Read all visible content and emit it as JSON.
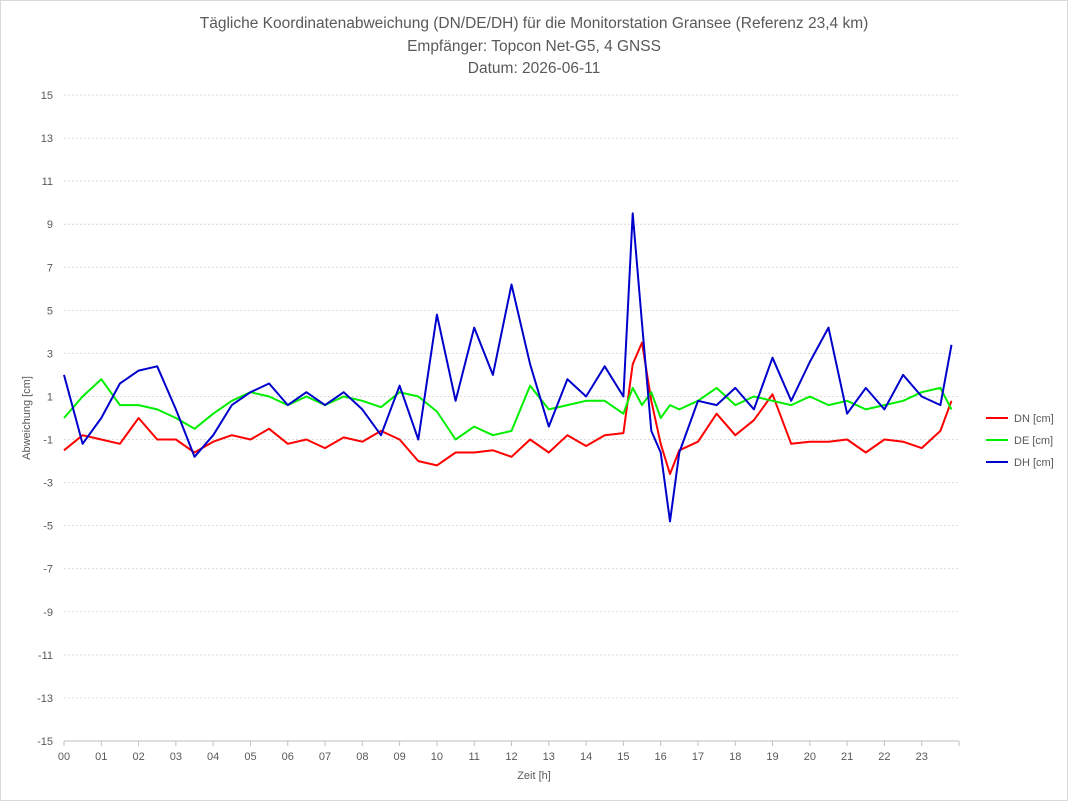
{
  "chart_data": {
    "type": "line",
    "title_lines": [
      "Tägliche Koordinatenabweichung (DN/DE/DH) für die Monitorstation Gransee (Referenz 23,4 km)",
      "Empfänger: Topcon Net-G5, 4 GNSS",
      "Datum: 2026-06-11"
    ],
    "xlabel": "Zeit [h]",
    "ylabel": "Abweichung [cm]",
    "x_ticks": [
      "00",
      "01",
      "02",
      "03",
      "04",
      "05",
      "06",
      "07",
      "08",
      "09",
      "10",
      "11",
      "12",
      "13",
      "14",
      "15",
      "16",
      "17",
      "18",
      "19",
      "20",
      "21",
      "22",
      "23"
    ],
    "xlim": [
      0,
      24
    ],
    "ylim": [
      -15,
      15
    ],
    "y_ticks": [
      "15",
      "13",
      "11",
      "9",
      "7",
      "5",
      "3",
      "1",
      "-1",
      "-3",
      "-5",
      "-7",
      "-9",
      "-11",
      "-13",
      "-15"
    ],
    "grid": "horizontal dotted",
    "legend_position": "right",
    "x": [
      0.0,
      0.5,
      1.0,
      1.5,
      2.0,
      2.5,
      3.0,
      3.5,
      4.0,
      4.5,
      5.0,
      5.5,
      6.0,
      6.5,
      7.0,
      7.5,
      8.0,
      8.5,
      9.0,
      9.5,
      10.0,
      10.5,
      11.0,
      11.5,
      12.0,
      12.5,
      13.0,
      13.5,
      14.0,
      14.5,
      15.0,
      15.25,
      15.5,
      15.75,
      16.0,
      16.25,
      16.5,
      17.0,
      17.5,
      18.0,
      18.5,
      19.0,
      19.5,
      20.0,
      20.5,
      21.0,
      21.5,
      22.0,
      22.5,
      23.0,
      23.5,
      23.8
    ],
    "series": [
      {
        "name": "DN [cm]",
        "color": "#ff0000",
        "values": [
          -1.5,
          -0.8,
          -1.0,
          -1.2,
          0.0,
          -1.0,
          -1.0,
          -1.6,
          -1.1,
          -0.8,
          -1.0,
          -0.5,
          -1.2,
          -1.0,
          -1.4,
          -0.9,
          -1.1,
          -0.6,
          -1.0,
          -2.0,
          -2.2,
          -1.6,
          -1.6,
          -1.5,
          -1.8,
          -1.0,
          -1.6,
          -0.8,
          -1.3,
          -0.8,
          -0.7,
          2.5,
          3.5,
          0.8,
          -1.2,
          -2.6,
          -1.5,
          -1.1,
          0.2,
          -0.8,
          -0.1,
          1.1,
          -1.2,
          -1.1,
          -1.1,
          -1.0,
          -1.6,
          -1.0,
          -1.1,
          -1.4,
          -0.6,
          0.8
        ]
      },
      {
        "name": "DE [cm]",
        "color": "#00ee00",
        "values": [
          0.0,
          1.0,
          1.8,
          0.6,
          0.6,
          0.4,
          0.0,
          -0.5,
          0.2,
          0.8,
          1.2,
          1.0,
          0.6,
          1.0,
          0.6,
          1.0,
          0.8,
          0.5,
          1.2,
          1.0,
          0.3,
          -1.0,
          -0.4,
          -0.8,
          -0.6,
          1.5,
          0.4,
          0.6,
          0.8,
          0.8,
          0.2,
          1.4,
          0.6,
          1.2,
          0.0,
          0.6,
          0.4,
          0.8,
          1.4,
          0.6,
          1.0,
          0.8,
          0.6,
          1.0,
          0.6,
          0.8,
          0.4,
          0.6,
          0.8,
          1.2,
          1.4,
          0.4
        ]
      },
      {
        "name": "DH [cm]",
        "color": "#0000cc",
        "values": [
          2.0,
          -1.2,
          0.0,
          1.6,
          2.2,
          2.4,
          0.4,
          -1.8,
          -0.8,
          0.6,
          1.2,
          1.6,
          0.6,
          1.2,
          0.6,
          1.2,
          0.4,
          -0.8,
          1.5,
          -1.0,
          4.8,
          0.8,
          4.2,
          2.0,
          6.2,
          2.5,
          -0.4,
          1.8,
          1.0,
          2.4,
          1.0,
          9.5,
          4.4,
          -0.6,
          -1.6,
          -4.8,
          -1.6,
          0.8,
          0.6,
          1.4,
          0.4,
          2.8,
          0.8,
          2.6,
          4.2,
          0.2,
          1.4,
          0.4,
          2.0,
          1.0,
          0.6,
          3.4
        ]
      }
    ]
  }
}
